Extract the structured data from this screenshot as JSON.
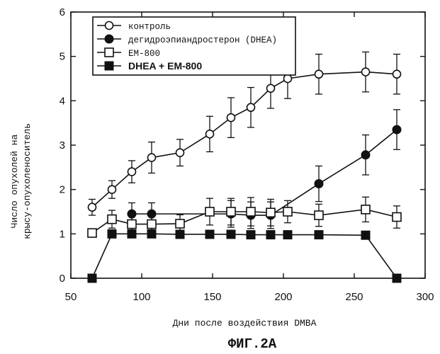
{
  "chart_data": {
    "type": "line",
    "title": "",
    "xlabel": "Дни после воздействия DMBA",
    "ylabel_lines": [
      "Число опухолей на",
      "крысу-опухоленоситель"
    ],
    "xlim": [
      50,
      300
    ],
    "ylim": [
      0,
      6
    ],
    "xticks": [
      50,
      100,
      150,
      200,
      250,
      300
    ],
    "yticks": [
      0,
      1,
      2,
      3,
      4,
      5,
      6
    ],
    "grid": false,
    "legend_position": "top-left",
    "series": [
      {
        "name": "контроль",
        "marker": "open-circle",
        "label_style": "normal",
        "x": [
          65,
          79,
          93,
          107,
          127,
          148,
          163,
          177,
          191,
          203,
          225,
          258,
          280
        ],
        "y": [
          1.6,
          2.0,
          2.4,
          2.72,
          2.83,
          3.25,
          3.62,
          3.85,
          4.28,
          4.5,
          4.6,
          4.65,
          4.6
        ],
        "err": [
          0.18,
          0.2,
          0.25,
          0.35,
          0.3,
          0.4,
          0.45,
          0.45,
          0.45,
          0.45,
          0.45,
          0.45,
          0.45
        ]
      },
      {
        "name": "дегидроэпиандростерон (DHEA)",
        "marker": "filled-circle",
        "label_style": "normal",
        "x": [
          93,
          107,
          163,
          177,
          191,
          225,
          258,
          280
        ],
        "y": [
          1.45,
          1.45,
          1.45,
          1.42,
          1.42,
          2.13,
          2.78,
          3.35
        ],
        "err": [
          0.25,
          0.25,
          0.3,
          0.3,
          0.3,
          0.4,
          0.45,
          0.45
        ]
      },
      {
        "name": "EM-800",
        "marker": "open-square",
        "label_style": "normal",
        "x": [
          65,
          79,
          93,
          107,
          127,
          148,
          163,
          177,
          191,
          203,
          225,
          258,
          280
        ],
        "y": [
          1.02,
          1.33,
          1.22,
          1.22,
          1.23,
          1.5,
          1.5,
          1.5,
          1.48,
          1.5,
          1.42,
          1.55,
          1.38
        ],
        "err": [
          0.05,
          0.2,
          0.25,
          0.25,
          0.2,
          0.3,
          0.3,
          0.32,
          0.3,
          0.25,
          0.25,
          0.28,
          0.25
        ]
      },
      {
        "name": "DHEA + EM-800",
        "marker": "filled-square",
        "label_style": "bold",
        "x": [
          65,
          79,
          93,
          107,
          127,
          148,
          163,
          177,
          191,
          203,
          225,
          258,
          280
        ],
        "y": [
          0,
          1.0,
          1.0,
          1.0,
          0.99,
          0.99,
          0.99,
          0.98,
          0.98,
          0.98,
          0.98,
          0.97,
          0
        ],
        "err": [
          0,
          0,
          0,
          0,
          0,
          0,
          0,
          0,
          0,
          0,
          0,
          0,
          0
        ]
      }
    ]
  },
  "figure_caption": "ФИГ.2А"
}
